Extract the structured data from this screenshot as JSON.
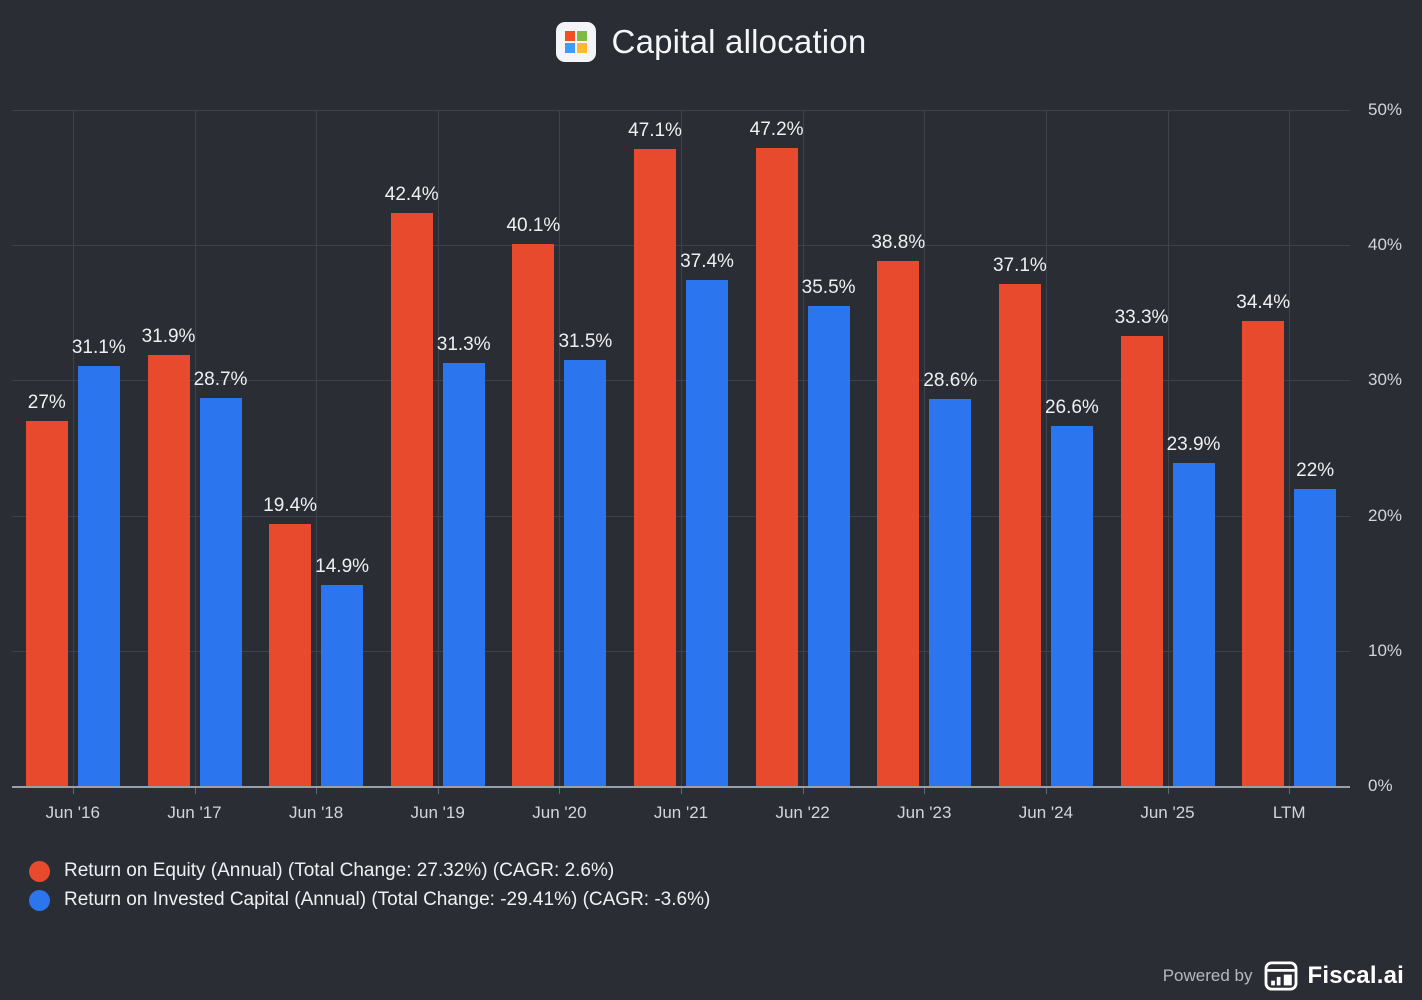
{
  "header": {
    "title": "Capital allocation",
    "icon": "microsoft-logo-icon"
  },
  "colors": {
    "background": "#2b2d35",
    "grid": "#3f424c",
    "axis_line": "#9aa0ab",
    "tick": "#62666f",
    "title_text": "#f5f6f8",
    "value_text": "#eef0f2",
    "axis_text": "#d3d5db",
    "legend_text": "#eef0f3",
    "powered_text": "#b4b8c1",
    "ms_red": "#f25022",
    "ms_green": "#7eba41",
    "ms_blue": "#3b9ef3",
    "ms_yellow": "#ffb92e",
    "roe": "#e84a2e",
    "roic": "#2b76ee"
  },
  "chart_data": {
    "type": "bar",
    "title": "Capital allocation",
    "categories": [
      "Jun '16",
      "Jun '17",
      "Jun '18",
      "Jun '19",
      "Jun '20",
      "Jun '21",
      "Jun '22",
      "Jun '23",
      "Jun '24",
      "Jun '25",
      "LTM"
    ],
    "series": [
      {
        "id": "roe",
        "name": "Return on Equity (Annual) (Total Change: 27.32%) (CAGR: 2.6%)",
        "color": "#e84a2e",
        "values": [
          27,
          31.9,
          19.4,
          42.4,
          40.1,
          47.1,
          47.2,
          38.8,
          37.1,
          33.3,
          34.4
        ],
        "labels": [
          "27%",
          "31.9%",
          "19.4%",
          "42.4%",
          "40.1%",
          "47.1%",
          "47.2%",
          "38.8%",
          "37.1%",
          "33.3%",
          "34.4%"
        ]
      },
      {
        "id": "roic",
        "name": "Return on Invested Capital (Annual) (Total Change: -29.41%) (CAGR: -3.6%)",
        "color": "#2b76ee",
        "values": [
          31.1,
          28.7,
          14.9,
          31.3,
          31.5,
          37.4,
          35.5,
          28.6,
          26.6,
          23.9,
          22
        ],
        "labels": [
          "31.1%",
          "28.7%",
          "14.9%",
          "31.3%",
          "31.5%",
          "37.4%",
          "35.5%",
          "28.6%",
          "26.6%",
          "23.9%",
          "22%"
        ]
      }
    ],
    "ylim": [
      0,
      50
    ],
    "ytick_labels": [
      "0%",
      "10%",
      "20%",
      "30%",
      "40%",
      "50%"
    ],
    "ytick_values": [
      0,
      10,
      20,
      30,
      40,
      50
    ],
    "grid": true,
    "legend_position": "bottom-left",
    "yaxis_side": "right"
  },
  "footer": {
    "powered_by": "Powered by",
    "brand": "Fiscal.ai"
  }
}
